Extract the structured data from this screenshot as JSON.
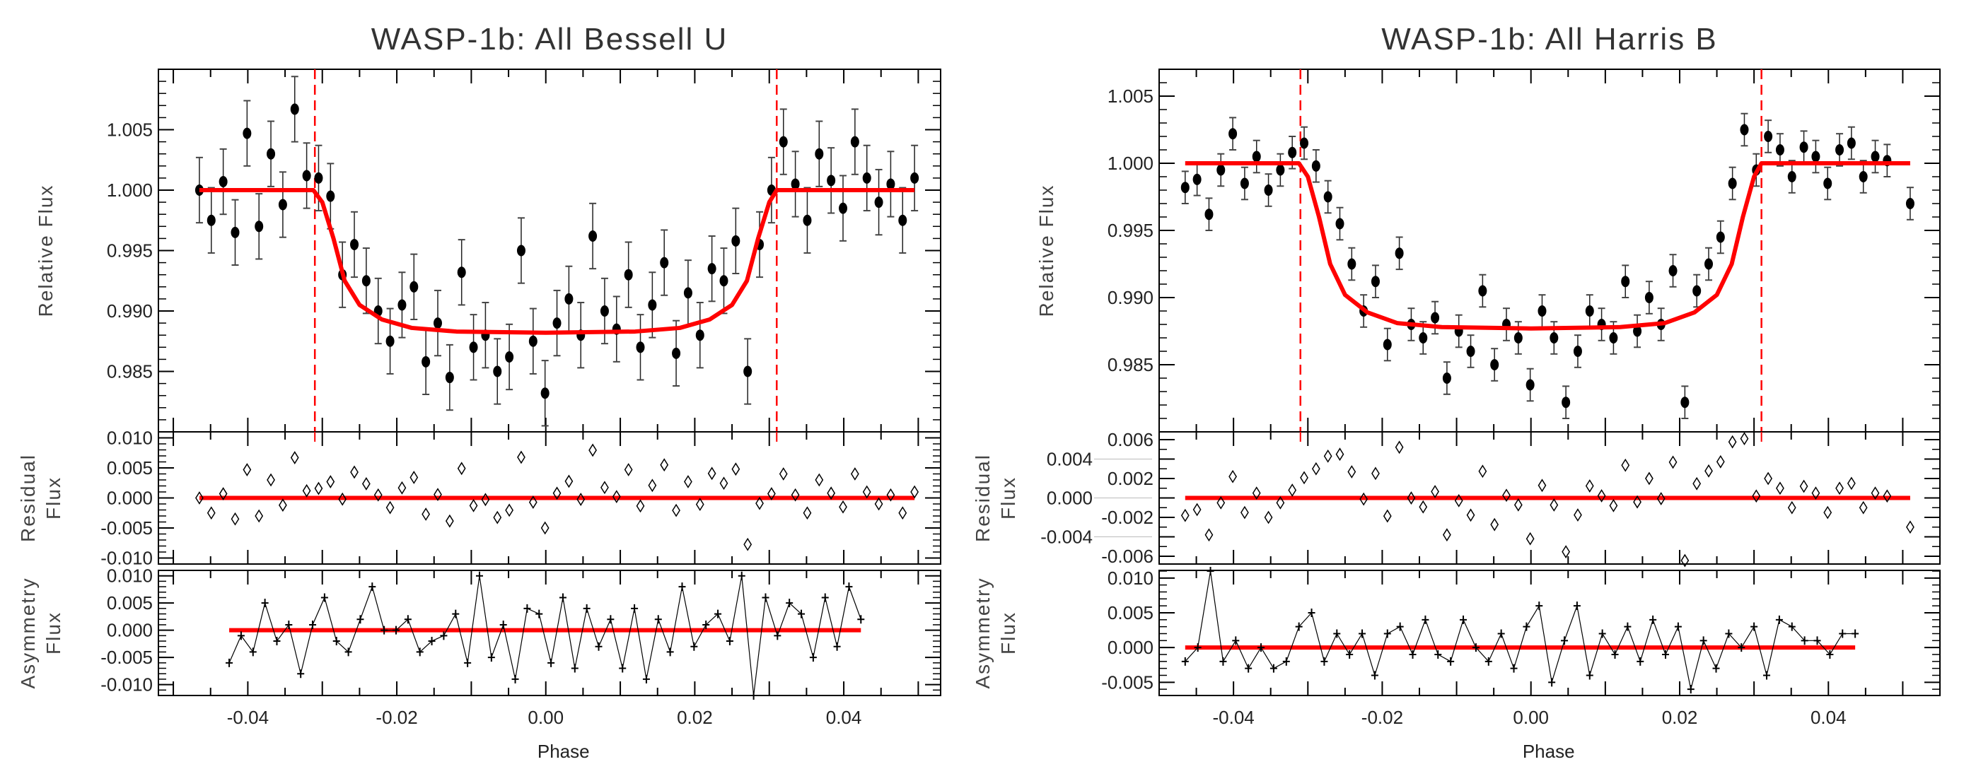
{
  "chart_data": [
    {
      "type": "scatter",
      "title": "WASP-1b: All Bessell U",
      "xlabel": "Phase",
      "xlim": [
        -0.052,
        0.053
      ],
      "xticks": [
        "-0.04",
        "-0.02",
        "0.00",
        "0.02",
        "0.04"
      ],
      "contact_lines": [
        -0.031,
        0.031
      ],
      "colors": {
        "model": "#ff0000",
        "data": "#000000",
        "contact": "#ff0000"
      },
      "flux_panel": {
        "ylabel": "Relative Flux",
        "ylim": [
          0.98,
          1.01
        ],
        "yticks": [
          "0.985",
          "0.990",
          "0.995",
          "1.000",
          "1.005"
        ],
        "x": [
          -0.0465,
          -0.0449,
          -0.0433,
          -0.0417,
          -0.0401,
          -0.0385,
          -0.0369,
          -0.0353,
          -0.0337,
          -0.0321,
          -0.0305,
          -0.0289,
          -0.0273,
          -0.0257,
          -0.0241,
          -0.0225,
          -0.0209,
          -0.0193,
          -0.0177,
          -0.0161,
          -0.0145,
          -0.0129,
          -0.0113,
          -0.0097,
          -0.0081,
          -0.0065,
          -0.0049,
          -0.0033,
          -0.0017,
          -0.0001,
          0.0015,
          0.0031,
          0.0047,
          0.0063,
          0.0079,
          0.0095,
          0.0111,
          0.0127,
          0.0143,
          0.0159,
          0.0175,
          0.0191,
          0.0207,
          0.0223,
          0.0239,
          0.0255,
          0.0271,
          0.0287,
          0.0303,
          0.0319,
          0.0335,
          0.0351,
          0.0367,
          0.0383,
          0.0399,
          0.0415,
          0.0431,
          0.0447,
          0.0463,
          0.0479,
          0.0495
        ],
        "flux": [
          1.0,
          0.9975,
          1.0007,
          0.9965,
          1.0047,
          0.997,
          1.003,
          0.9988,
          1.0067,
          1.0012,
          1.001,
          0.9995,
          0.993,
          0.9955,
          0.9925,
          0.99,
          0.9875,
          0.9905,
          0.992,
          0.9858,
          0.989,
          0.9845,
          0.9932,
          0.987,
          0.988,
          0.985,
          0.9862,
          0.995,
          0.9875,
          0.9832,
          0.989,
          0.991,
          0.988,
          0.9962,
          0.99,
          0.9885,
          0.993,
          0.987,
          0.9905,
          0.994,
          0.9865,
          0.9915,
          0.988,
          0.9935,
          0.9925,
          0.9958,
          0.985,
          0.9955,
          1.0,
          1.004,
          1.0005,
          0.9975,
          1.003,
          1.0008,
          0.9985,
          1.004,
          1.001,
          0.999,
          1.0005,
          0.9975,
          1.001
        ],
        "flux_err": 0.0027,
        "model": [
          [
            -0.0465,
            1.0
          ],
          [
            -0.0312,
            1.0
          ],
          [
            -0.03,
            0.999
          ],
          [
            -0.0285,
            0.996
          ],
          [
            -0.027,
            0.9925
          ],
          [
            -0.025,
            0.9905
          ],
          [
            -0.022,
            0.9893
          ],
          [
            -0.018,
            0.9886
          ],
          [
            -0.012,
            0.9883
          ],
          [
            0.0,
            0.9882
          ],
          [
            0.012,
            0.9883
          ],
          [
            0.018,
            0.9886
          ],
          [
            0.022,
            0.9893
          ],
          [
            0.025,
            0.9905
          ],
          [
            0.027,
            0.9925
          ],
          [
            0.0285,
            0.996
          ],
          [
            0.03,
            0.999
          ],
          [
            0.031,
            1.0
          ],
          [
            0.0495,
            1.0
          ]
        ]
      },
      "residual_panel": {
        "ylabel": [
          "Residual",
          "Flux"
        ],
        "ylim": [
          -0.011,
          0.011
        ],
        "yticks": [
          "-0.010",
          "-0.005",
          "0.000",
          "0.005",
          "0.010"
        ]
      },
      "asymmetry_panel": {
        "ylabel": [
          "Asymmetry",
          "Flux"
        ],
        "ylim": [
          -0.012,
          0.011
        ],
        "yticks": [
          "-0.010",
          "-0.005",
          "0.000",
          "0.005",
          "0.010"
        ],
        "x": [
          -0.0425,
          -0.0409,
          -0.0393,
          -0.0377,
          -0.0361,
          -0.0345,
          -0.0329,
          -0.0313,
          -0.0297,
          -0.0281,
          -0.0265,
          -0.0249,
          -0.0233,
          -0.0217,
          -0.0201,
          -0.0185,
          -0.0169,
          -0.0153,
          -0.0137,
          -0.0121,
          -0.0105,
          -0.0089,
          -0.0073,
          -0.0057,
          -0.0041,
          -0.0025,
          -0.0009,
          0.0007,
          0.0023,
          0.0039,
          0.0055,
          0.0071,
          0.0087,
          0.0103,
          0.0119,
          0.0135,
          0.0151,
          0.0167,
          0.0183,
          0.0199,
          0.0215,
          0.0231,
          0.0247,
          0.0263,
          0.0279,
          0.0295,
          0.0311,
          0.0327,
          0.0343,
          0.0359,
          0.0375,
          0.0391,
          0.0407,
          0.0423
        ],
        "y": [
          -0.006,
          -0.001,
          -0.004,
          0.005,
          -0.002,
          0.001,
          -0.008,
          0.001,
          0.006,
          -0.002,
          -0.004,
          0.002,
          0.008,
          0.0,
          0.0,
          0.002,
          -0.004,
          -0.002,
          -0.001,
          0.003,
          -0.006,
          0.01,
          -0.005,
          0.001,
          -0.009,
          0.004,
          0.003,
          -0.006,
          0.006,
          -0.007,
          0.004,
          -0.003,
          0.002,
          -0.007,
          0.004,
          -0.009,
          0.002,
          -0.004,
          0.008,
          -0.003,
          0.001,
          0.003,
          -0.002,
          0.01,
          -0.012,
          0.006,
          -0.001,
          0.005,
          0.003,
          -0.005,
          0.006,
          -0.003,
          0.008,
          0.002
        ]
      }
    },
    {
      "type": "scatter",
      "title": "WASP-1b: All Harris B",
      "xlabel": "Phase",
      "xlim": [
        -0.05,
        0.055
      ],
      "xticks": [
        "-0.04",
        "-0.02",
        "0.00",
        "0.02",
        "0.04"
      ],
      "contact_lines": [
        -0.031,
        0.031
      ],
      "colors": {
        "model": "#ff0000",
        "data": "#000000",
        "contact": "#ff0000"
      },
      "flux_panel": {
        "ylabel": "Relative Flux",
        "ylim": [
          0.98,
          1.007
        ],
        "yticks": [
          "0.985",
          "0.990",
          "0.995",
          "1.000",
          "1.005"
        ],
        "x": [
          -0.0465,
          -0.0449,
          -0.0433,
          -0.0417,
          -0.0401,
          -0.0385,
          -0.0369,
          -0.0353,
          -0.0337,
          -0.0321,
          -0.0305,
          -0.0289,
          -0.0273,
          -0.0257,
          -0.0241,
          -0.0225,
          -0.0209,
          -0.0193,
          -0.0177,
          -0.0161,
          -0.0145,
          -0.0129,
          -0.0113,
          -0.0097,
          -0.0081,
          -0.0065,
          -0.0049,
          -0.0033,
          -0.0017,
          -0.0001,
          0.0015,
          0.0031,
          0.0047,
          0.0063,
          0.0079,
          0.0095,
          0.0111,
          0.0127,
          0.0143,
          0.0159,
          0.0175,
          0.0191,
          0.0207,
          0.0223,
          0.0239,
          0.0255,
          0.0271,
          0.0287,
          0.0303,
          0.0319,
          0.0335,
          0.0351,
          0.0367,
          0.0383,
          0.0399,
          0.0415,
          0.0431,
          0.0447,
          0.0463,
          0.0479,
          0.051
        ],
        "flux": [
          0.9982,
          0.9988,
          0.9962,
          0.9995,
          1.0022,
          0.9985,
          1.0005,
          0.998,
          0.9995,
          1.0008,
          1.0015,
          0.9998,
          0.9975,
          0.9955,
          0.9925,
          0.989,
          0.9912,
          0.9865,
          0.9933,
          0.988,
          0.987,
          0.9885,
          0.984,
          0.9875,
          0.986,
          0.9905,
          0.985,
          0.988,
          0.987,
          0.9835,
          0.989,
          0.987,
          0.9822,
          0.986,
          0.989,
          0.988,
          0.987,
          0.9912,
          0.9875,
          0.99,
          0.988,
          0.992,
          0.9822,
          0.9905,
          0.9925,
          0.9945,
          0.9985,
          1.0025,
          0.9995,
          1.002,
          1.001,
          0.999,
          1.0012,
          1.0005,
          0.9985,
          1.001,
          1.0015,
          0.999,
          1.0005,
          1.0002,
          0.997
        ],
        "flux_err": 0.0012,
        "model": [
          [
            -0.0465,
            1.0
          ],
          [
            -0.0312,
            1.0
          ],
          [
            -0.03,
            0.999
          ],
          [
            -0.0285,
            0.996
          ],
          [
            -0.027,
            0.9925
          ],
          [
            -0.025,
            0.9902
          ],
          [
            -0.022,
            0.9889
          ],
          [
            -0.018,
            0.9881
          ],
          [
            -0.012,
            0.9878
          ],
          [
            0.0,
            0.9877
          ],
          [
            0.012,
            0.9878
          ],
          [
            0.018,
            0.9881
          ],
          [
            0.022,
            0.9889
          ],
          [
            0.025,
            0.9902
          ],
          [
            0.027,
            0.9925
          ],
          [
            0.0285,
            0.996
          ],
          [
            0.03,
            0.999
          ],
          [
            0.031,
            1.0
          ],
          [
            0.051,
            1.0
          ]
        ]
      },
      "residual_panel": {
        "ylabel": [
          "Residual",
          "Flux"
        ],
        "ylim": [
          -0.0068,
          0.0068
        ],
        "yticks": [
          "-0.006",
          "-0.004",
          "-0.002",
          "0.000",
          "0.002",
          "0.004",
          "0.006"
        ]
      },
      "asymmetry_panel": {
        "ylabel": [
          "Asymmetry",
          "Flux"
        ],
        "ylim": [
          -0.0069,
          0.0111
        ],
        "yticks": [
          "-0.005",
          "0.000",
          "0.005",
          "0.010"
        ],
        "x": [
          -0.0465,
          -0.0448,
          -0.0431,
          -0.0414,
          -0.0397,
          -0.038,
          -0.0363,
          -0.0346,
          -0.0329,
          -0.0312,
          -0.0295,
          -0.0278,
          -0.0261,
          -0.0244,
          -0.0227,
          -0.021,
          -0.0193,
          -0.0176,
          -0.0159,
          -0.0142,
          -0.0125,
          -0.0108,
          -0.0091,
          -0.0074,
          -0.0057,
          -0.004,
          -0.0023,
          -0.0006,
          0.0011,
          0.0028,
          0.0045,
          0.0062,
          0.0079,
          0.0096,
          0.0113,
          0.013,
          0.0147,
          0.0164,
          0.0181,
          0.0198,
          0.0215,
          0.0232,
          0.0249,
          0.0266,
          0.0283,
          0.03,
          0.0317,
          0.0334,
          0.0351,
          0.0368,
          0.0385,
          0.0402,
          0.0419,
          0.0436
        ],
        "y": [
          -0.002,
          0.0,
          0.011,
          -0.002,
          0.001,
          -0.003,
          0.0,
          -0.003,
          -0.002,
          0.003,
          0.005,
          -0.002,
          0.002,
          -0.001,
          0.002,
          -0.004,
          0.002,
          0.003,
          -0.001,
          0.004,
          -0.001,
          -0.002,
          0.004,
          0.0,
          -0.002,
          0.002,
          -0.003,
          0.003,
          0.006,
          -0.005,
          0.001,
          0.006,
          -0.004,
          0.002,
          -0.001,
          0.003,
          -0.002,
          0.004,
          -0.001,
          0.003,
          -0.006,
          0.001,
          -0.003,
          0.002,
          0.0,
          0.003,
          -0.004,
          0.004,
          0.003,
          0.001,
          0.001,
          -0.001,
          0.002,
          0.002
        ]
      }
    }
  ]
}
